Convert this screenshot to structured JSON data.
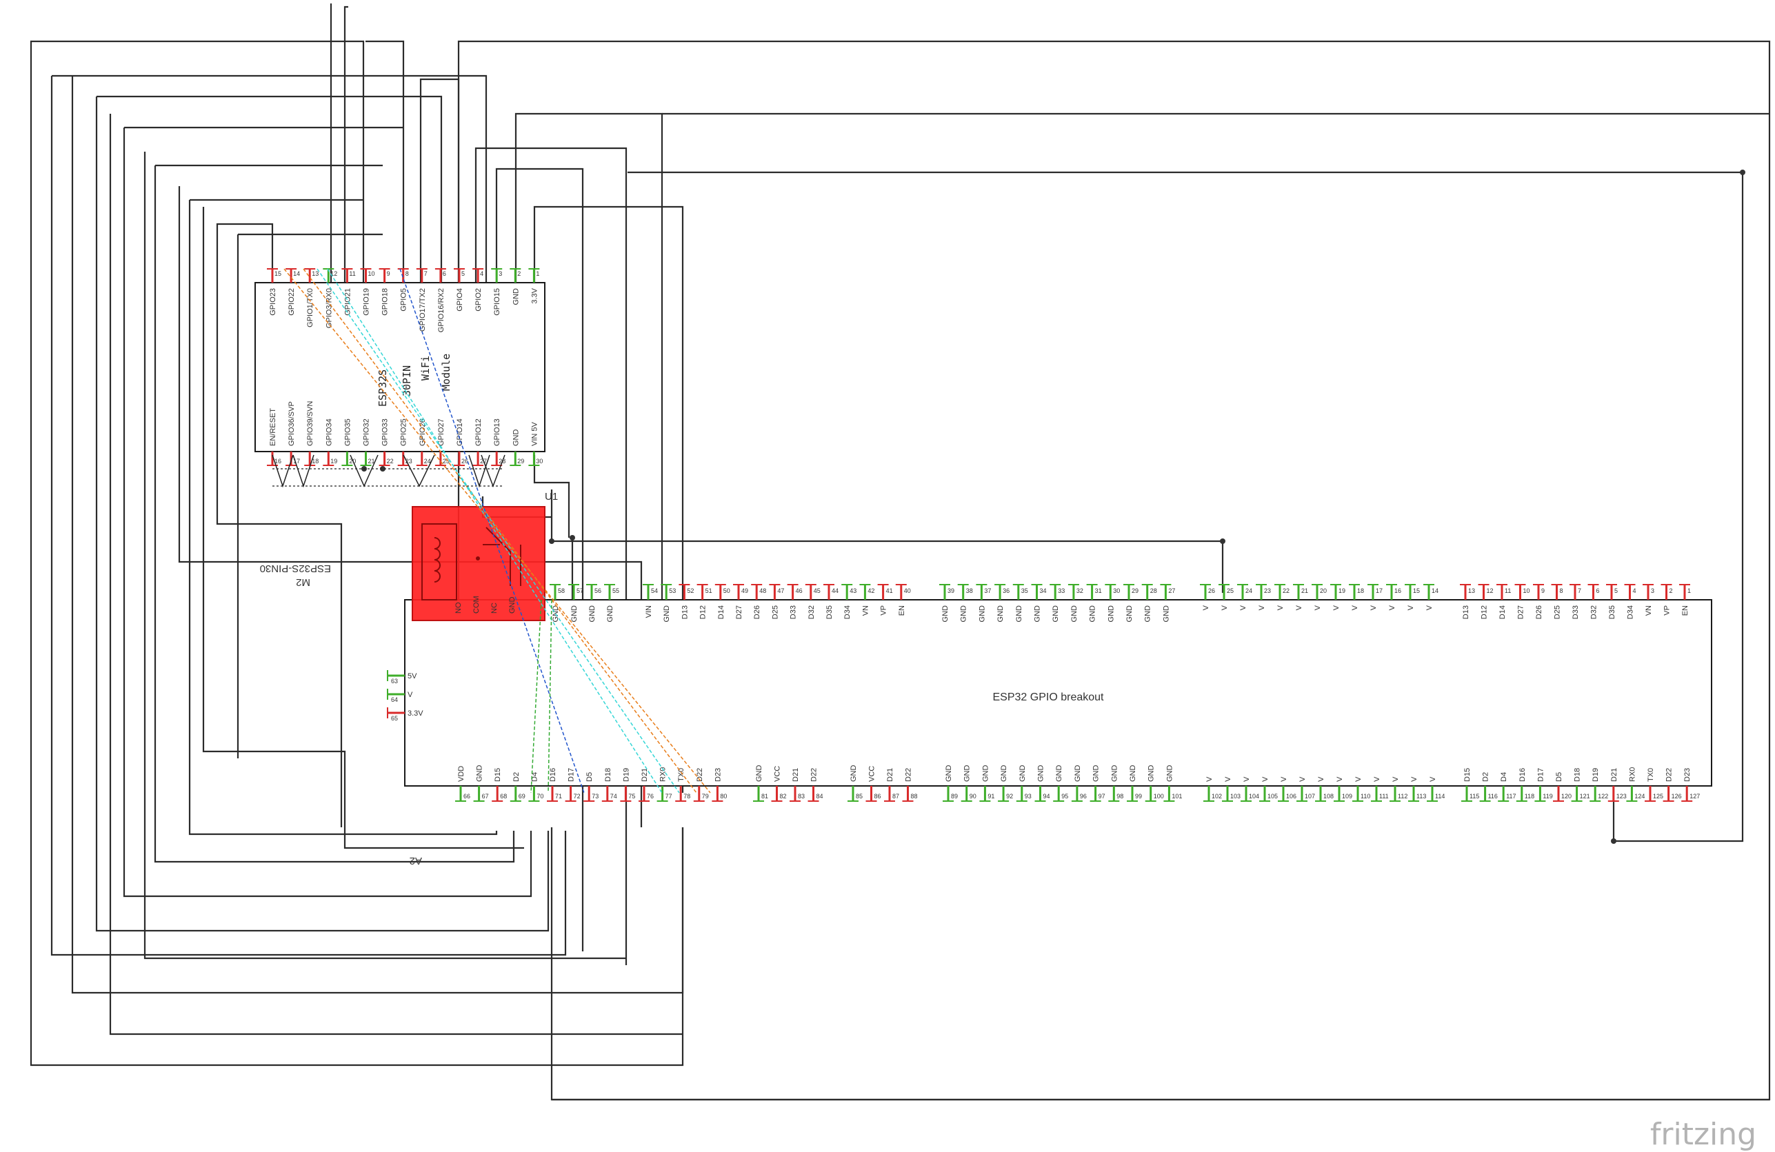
{
  "app": {
    "watermark": "fritzing"
  },
  "colors": {
    "pin_green": "#3fae2a",
    "pin_red": "#d92b2b",
    "relay_red": "#ff2222",
    "wire_orange": "#e87d1a",
    "wire_cyan": "#35d6d6",
    "wire_blue": "#2255cc",
    "wire_green": "#33aa33"
  },
  "module": {
    "title_lines": [
      "ESP32S",
      "30PIN",
      "WiFi",
      "Module"
    ],
    "ref": "U1",
    "label_ref": "M2",
    "label_name": "ESP32S-PIN30",
    "top_pins": [
      {
        "num": "15",
        "name": "GPIO23",
        "c": "r"
      },
      {
        "num": "14",
        "name": "GPIO22",
        "c": "r"
      },
      {
        "num": "13",
        "name": "GPIO1/TX0",
        "c": "r"
      },
      {
        "num": "12",
        "name": "GPIO3/RX0",
        "c": "g"
      },
      {
        "num": "11",
        "name": "GPIO21",
        "c": "r"
      },
      {
        "num": "10",
        "name": "GPIO19",
        "c": "r"
      },
      {
        "num": "9",
        "name": "GPIO18",
        "c": "r"
      },
      {
        "num": "8",
        "name": "GPIO5",
        "c": "r"
      },
      {
        "num": "7",
        "name": "GPIO17/TX2",
        "c": "r"
      },
      {
        "num": "6",
        "name": "GPIO16/RX2",
        "c": "r"
      },
      {
        "num": "5",
        "name": "GPIO4",
        "c": "r"
      },
      {
        "num": "4",
        "name": "GPIO2",
        "c": "r"
      },
      {
        "num": "3",
        "name": "GPIO15",
        "c": "g"
      },
      {
        "num": "2",
        "name": "GND",
        "c": "g"
      },
      {
        "num": "1",
        "name": "3.3V",
        "c": "g"
      }
    ],
    "bottom_pins": [
      {
        "num": "16",
        "name": "EN/RESET",
        "c": "r"
      },
      {
        "num": "17",
        "name": "GPIO36/SVP",
        "c": "r"
      },
      {
        "num": "18",
        "name": "GPIO39/SVN",
        "c": "r"
      },
      {
        "num": "19",
        "name": "GPIO34",
        "c": "r"
      },
      {
        "num": "20",
        "name": "GPIO35",
        "c": "g"
      },
      {
        "num": "21",
        "name": "GPIO32",
        "c": "g"
      },
      {
        "num": "22",
        "name": "GPIO33",
        "c": "r"
      },
      {
        "num": "23",
        "name": "GPIO25",
        "c": "r"
      },
      {
        "num": "24",
        "name": "GPIO26",
        "c": "r"
      },
      {
        "num": "25",
        "name": "GPIO27",
        "c": "r"
      },
      {
        "num": "26",
        "name": "GPIO14",
        "c": "r"
      },
      {
        "num": "27",
        "name": "GPIO12",
        "c": "r"
      },
      {
        "num": "28",
        "name": "GPIO13",
        "c": "r"
      },
      {
        "num": "29",
        "name": "GND",
        "c": "g"
      },
      {
        "num": "30",
        "name": "VIN 5V",
        "c": "g"
      }
    ]
  },
  "breakout": {
    "title": "ESP32 GPIO breakout",
    "ref": "A2",
    "top_pins": [
      {
        "num": "58",
        "name": "GND",
        "c": "g"
      },
      {
        "num": "57",
        "name": "GND",
        "c": "g"
      },
      {
        "num": "56",
        "name": "GND",
        "c": "g"
      },
      {
        "num": "55",
        "name": "GND",
        "c": "g"
      },
      {
        "num": "54",
        "name": "VIN",
        "c": "g"
      },
      {
        "num": "53",
        "name": "GND",
        "c": "g"
      },
      {
        "num": "52",
        "name": "D13",
        "c": "r"
      },
      {
        "num": "51",
        "name": "D12",
        "c": "r"
      },
      {
        "num": "50",
        "name": "D14",
        "c": "r"
      },
      {
        "num": "49",
        "name": "D27",
        "c": "r"
      },
      {
        "num": "48",
        "name": "D26",
        "c": "r"
      },
      {
        "num": "47",
        "name": "D25",
        "c": "r"
      },
      {
        "num": "46",
        "name": "D33",
        "c": "r"
      },
      {
        "num": "45",
        "name": "D32",
        "c": "r"
      },
      {
        "num": "44",
        "name": "D35",
        "c": "r"
      },
      {
        "num": "43",
        "name": "D34",
        "c": "g"
      },
      {
        "num": "42",
        "name": "VN",
        "c": "g"
      },
      {
        "num": "41",
        "name": "VP",
        "c": "r"
      },
      {
        "num": "40",
        "name": "EN",
        "c": "r"
      },
      {
        "num": "39",
        "name": "GND",
        "c": "g"
      },
      {
        "num": "38",
        "name": "GND",
        "c": "g"
      },
      {
        "num": "37",
        "name": "GND",
        "c": "g"
      },
      {
        "num": "36",
        "name": "GND",
        "c": "g"
      },
      {
        "num": "35",
        "name": "GND",
        "c": "g"
      },
      {
        "num": "34",
        "name": "GND",
        "c": "g"
      },
      {
        "num": "33",
        "name": "GND",
        "c": "g"
      },
      {
        "num": "32",
        "name": "GND",
        "c": "g"
      },
      {
        "num": "31",
        "name": "GND",
        "c": "g"
      },
      {
        "num": "30",
        "name": "GND",
        "c": "g"
      },
      {
        "num": "29",
        "name": "GND",
        "c": "g"
      },
      {
        "num": "28",
        "name": "GND",
        "c": "g"
      },
      {
        "num": "27",
        "name": "GND",
        "c": "g"
      },
      {
        "num": "26",
        "name": "V",
        "c": "g"
      },
      {
        "num": "25",
        "name": "V",
        "c": "g"
      },
      {
        "num": "24",
        "name": "V",
        "c": "g"
      },
      {
        "num": "23",
        "name": "V",
        "c": "g"
      },
      {
        "num": "22",
        "name": "V",
        "c": "g"
      },
      {
        "num": "21",
        "name": "V",
        "c": "g"
      },
      {
        "num": "20",
        "name": "V",
        "c": "g"
      },
      {
        "num": "19",
        "name": "V",
        "c": "g"
      },
      {
        "num": "18",
        "name": "V",
        "c": "g"
      },
      {
        "num": "17",
        "name": "V",
        "c": "g"
      },
      {
        "num": "16",
        "name": "V",
        "c": "g"
      },
      {
        "num": "15",
        "name": "V",
        "c": "g"
      },
      {
        "num": "14",
        "name": "V",
        "c": "g"
      },
      {
        "num": "13",
        "name": "D13",
        "c": "r"
      },
      {
        "num": "12",
        "name": "D12",
        "c": "r"
      },
      {
        "num": "11",
        "name": "D14",
        "c": "r"
      },
      {
        "num": "10",
        "name": "D27",
        "c": "r"
      },
      {
        "num": "9",
        "name": "D26",
        "c": "r"
      },
      {
        "num": "8",
        "name": "D25",
        "c": "r"
      },
      {
        "num": "7",
        "name": "D33",
        "c": "r"
      },
      {
        "num": "6",
        "name": "D32",
        "c": "r"
      },
      {
        "num": "5",
        "name": "D35",
        "c": "r"
      },
      {
        "num": "4",
        "name": "D34",
        "c": "r"
      },
      {
        "num": "3",
        "name": "VN",
        "c": "r"
      },
      {
        "num": "2",
        "name": "VP",
        "c": "r"
      },
      {
        "num": "1",
        "name": "EN",
        "c": "r"
      }
    ],
    "bottom_pins": [
      {
        "num": "66",
        "name": "VDD",
        "c": "g"
      },
      {
        "num": "67",
        "name": "GND",
        "c": "g"
      },
      {
        "num": "68",
        "name": "D15",
        "c": "r"
      },
      {
        "num": "69",
        "name": "D2",
        "c": "g"
      },
      {
        "num": "70",
        "name": "D4",
        "c": "g"
      },
      {
        "num": "71",
        "name": "D16",
        "c": "r"
      },
      {
        "num": "72",
        "name": "D17",
        "c": "r"
      },
      {
        "num": "73",
        "name": "D5",
        "c": "r"
      },
      {
        "num": "74",
        "name": "D18",
        "c": "r"
      },
      {
        "num": "75",
        "name": "D19",
        "c": "r"
      },
      {
        "num": "76",
        "name": "D21",
        "c": "r"
      },
      {
        "num": "77",
        "name": "RX0",
        "c": "g"
      },
      {
        "num": "78",
        "name": "TX0",
        "c": "r"
      },
      {
        "num": "79",
        "name": "D22",
        "c": "r"
      },
      {
        "num": "80",
        "name": "D23",
        "c": "r"
      },
      {
        "num": "81",
        "name": "GND",
        "c": "g"
      },
      {
        "num": "82",
        "name": "VCC",
        "c": "r"
      },
      {
        "num": "83",
        "name": "D21",
        "c": "r"
      },
      {
        "num": "84",
        "name": "D22",
        "c": "r"
      },
      {
        "num": "85",
        "name": "GND",
        "c": "g"
      },
      {
        "num": "86",
        "name": "VCC",
        "c": "r"
      },
      {
        "num": "87",
        "name": "D21",
        "c": "r"
      },
      {
        "num": "88",
        "name": "D22",
        "c": "r"
      },
      {
        "num": "89",
        "name": "GND",
        "c": "g"
      },
      {
        "num": "90",
        "name": "GND",
        "c": "g"
      },
      {
        "num": "91",
        "name": "GND",
        "c": "g"
      },
      {
        "num": "92",
        "name": "GND",
        "c": "g"
      },
      {
        "num": "93",
        "name": "GND",
        "c": "g"
      },
      {
        "num": "94",
        "name": "GND",
        "c": "g"
      },
      {
        "num": "95",
        "name": "GND",
        "c": "g"
      },
      {
        "num": "96",
        "name": "GND",
        "c": "g"
      },
      {
        "num": "97",
        "name": "GND",
        "c": "g"
      },
      {
        "num": "98",
        "name": "GND",
        "c": "g"
      },
      {
        "num": "99",
        "name": "GND",
        "c": "g"
      },
      {
        "num": "100",
        "name": "GND",
        "c": "g"
      },
      {
        "num": "101",
        "name": "GND",
        "c": "g"
      },
      {
        "num": "102",
        "name": "V",
        "c": "g"
      },
      {
        "num": "103",
        "name": "V",
        "c": "g"
      },
      {
        "num": "104",
        "name": "V",
        "c": "g"
      },
      {
        "num": "105",
        "name": "V",
        "c": "g"
      },
      {
        "num": "106",
        "name": "V",
        "c": "g"
      },
      {
        "num": "107",
        "name": "V",
        "c": "g"
      },
      {
        "num": "108",
        "name": "V",
        "c": "g"
      },
      {
        "num": "109",
        "name": "V",
        "c": "g"
      },
      {
        "num": "110",
        "name": "V",
        "c": "g"
      },
      {
        "num": "111",
        "name": "V",
        "c": "g"
      },
      {
        "num": "112",
        "name": "V",
        "c": "g"
      },
      {
        "num": "113",
        "name": "V",
        "c": "g"
      },
      {
        "num": "114",
        "name": "V",
        "c": "g"
      },
      {
        "num": "115",
        "name": "D15",
        "c": "g"
      },
      {
        "num": "116",
        "name": "D2",
        "c": "g"
      },
      {
        "num": "117",
        "name": "D4",
        "c": "g"
      },
      {
        "num": "118",
        "name": "D16",
        "c": "g"
      },
      {
        "num": "119",
        "name": "D17",
        "c": "g"
      },
      {
        "num": "120",
        "name": "D5",
        "c": "r"
      },
      {
        "num": "121",
        "name": "D18",
        "c": "g"
      },
      {
        "num": "122",
        "name": "D19",
        "c": "g"
      },
      {
        "num": "123",
        "name": "D21",
        "c": "r"
      },
      {
        "num": "124",
        "name": "RX0",
        "c": "g"
      },
      {
        "num": "125",
        "name": "TX0",
        "c": "r"
      },
      {
        "num": "126",
        "name": "D22",
        "c": "r"
      },
      {
        "num": "127",
        "name": "D23",
        "c": "r"
      }
    ],
    "side_pins": [
      {
        "num": "63",
        "name": "5V",
        "c": "g"
      },
      {
        "num": "64",
        "name": "V",
        "c": "g"
      },
      {
        "num": "65",
        "name": "3.3V",
        "c": "r"
      }
    ]
  },
  "relay": {
    "pin_labels": [
      "NO",
      "COM",
      "NC",
      "GND"
    ]
  }
}
